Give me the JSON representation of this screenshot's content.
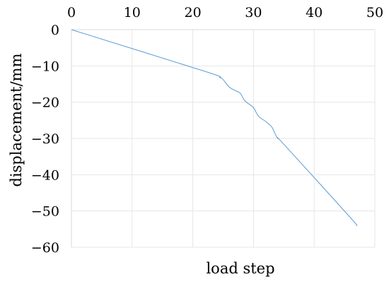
{
  "chart_data": {
    "type": "line",
    "title": "",
    "xlabel": "load step",
    "ylabel": "displacement/mm",
    "xlim": [
      0,
      50
    ],
    "ylim": [
      -60,
      0
    ],
    "x_ticks": [
      "0",
      "10",
      "20",
      "30",
      "40",
      "50"
    ],
    "y_ticks": [
      "0",
      "−10",
      "−20",
      "−30",
      "−40",
      "−50",
      "−60"
    ],
    "x_axis_position": "top",
    "grid": true,
    "legend": "none",
    "colors": {
      "series": "#5b9bd5",
      "grid": "#e6e6e6",
      "axis": "#d9d9d9"
    },
    "series": [
      {
        "points": [
          [
            0,
            0
          ],
          [
            22,
            -11.5
          ],
          [
            24.5,
            -13.2
          ],
          [
            25,
            -13.8
          ],
          [
            26,
            -15.8
          ],
          [
            27,
            -16.8
          ],
          [
            27.8,
            -17.5
          ],
          [
            28.5,
            -19.5
          ],
          [
            29,
            -20.2
          ],
          [
            30,
            -21.5
          ],
          [
            30.8,
            -23.8
          ],
          [
            32,
            -25.3
          ],
          [
            33,
            -26.8
          ],
          [
            33.5,
            -28.5
          ],
          [
            34,
            -30
          ],
          [
            35,
            -31.6
          ],
          [
            45.8,
            -51.5
          ],
          [
            47,
            -54
          ]
        ]
      }
    ]
  }
}
